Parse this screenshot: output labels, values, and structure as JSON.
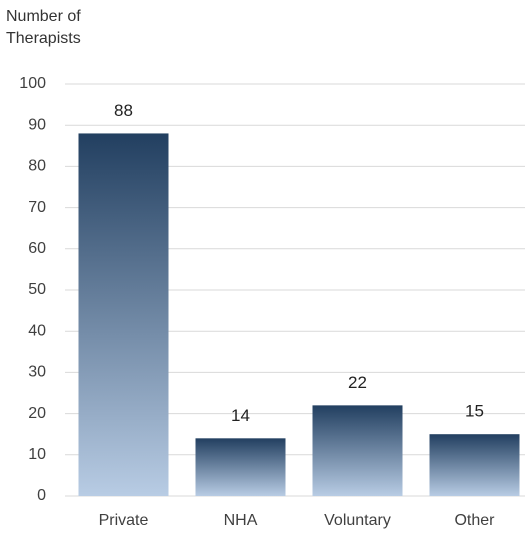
{
  "chart_data": {
    "type": "bar",
    "y_axis_label": "Number of Therapists",
    "categories": [
      "Private",
      "NHA",
      "Voluntary",
      "Other"
    ],
    "values": [
      88,
      14,
      22,
      15
    ],
    "color": "#223f60",
    "color_light": "#b8cce4",
    "ylim": [
      0,
      100
    ],
    "yticks": [
      0,
      10,
      20,
      30,
      40,
      50,
      60,
      70,
      80,
      90,
      100
    ],
    "grid": true
  }
}
